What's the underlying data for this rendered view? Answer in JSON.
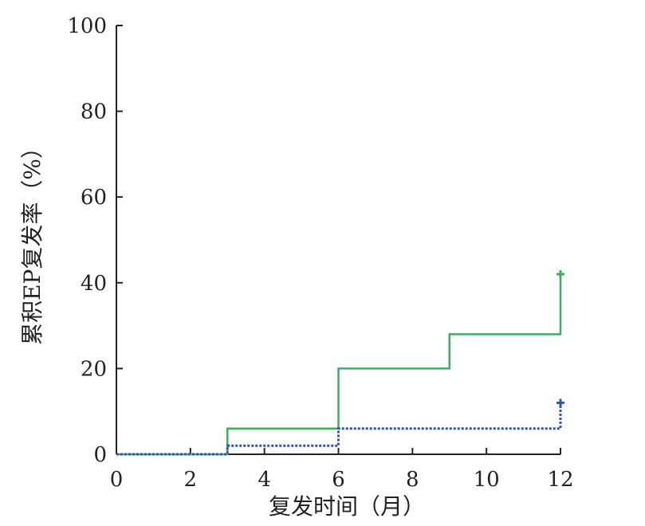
{
  "chart_data": {
    "type": "line",
    "step": true,
    "xlabel": "复发时间（月）",
    "ylabel": "累积EP复发率（%）",
    "xlim": [
      0,
      12
    ],
    "ylim": [
      0,
      100
    ],
    "x_ticks": [
      "0",
      "2",
      "4",
      "6",
      "8",
      "10",
      "12"
    ],
    "y_ticks": [
      "0",
      "20",
      "40",
      "60",
      "80",
      "100"
    ],
    "grid": false,
    "legend": "none",
    "series": [
      {
        "color": "#3fad62",
        "line_style": "solid",
        "censor_marker": "+",
        "points": [
          [
            0,
            0
          ],
          [
            3,
            0
          ],
          [
            3,
            6
          ],
          [
            6,
            6
          ],
          [
            6,
            20
          ],
          [
            9,
            20
          ],
          [
            9,
            28
          ],
          [
            12,
            28
          ],
          [
            12,
            42
          ]
        ]
      },
      {
        "color": "#3553b0",
        "line_style": "dotted",
        "censor_marker": "+",
        "points": [
          [
            0,
            0
          ],
          [
            3,
            0
          ],
          [
            3,
            2
          ],
          [
            6,
            2
          ],
          [
            6,
            6
          ],
          [
            12,
            6
          ],
          [
            12,
            12
          ]
        ]
      }
    ]
  }
}
